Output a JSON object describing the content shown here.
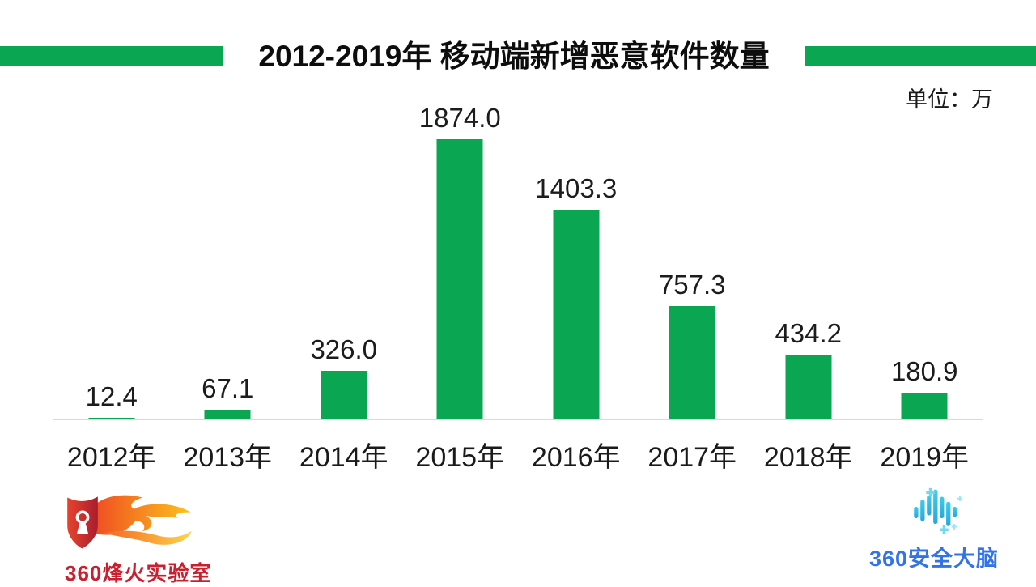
{
  "title": {
    "text": "2012-2019年 移动端新增恶意软件数量"
  },
  "unit_label": "单位：万",
  "chart_data": {
    "type": "bar",
    "title": "2012-2019年 移动端新增恶意软件数量",
    "categories": [
      "2012年",
      "2013年",
      "2014年",
      "2015年",
      "2016年",
      "2017年",
      "2018年",
      "2019年"
    ],
    "values": [
      12.4,
      67.1,
      326.0,
      1874.0,
      1403.3,
      757.3,
      434.2,
      180.9
    ],
    "value_labels": [
      "12.4",
      "67.1",
      "326.0",
      "1874.0",
      "1403.3",
      "757.3",
      "434.2",
      "180.9"
    ],
    "xlabel": "",
    "ylabel": "单位：万",
    "ylim": [
      0,
      1874
    ],
    "bar_color": "#0ba652",
    "axis_line_color": "#d9d9d9",
    "grid": false,
    "legend": false
  },
  "footer": {
    "left_logo_text": "360烽火实验室",
    "left_logo_color": "#c8202f",
    "right_logo_text": "360安全大脑",
    "right_logo_color": "#3273e8"
  },
  "colors": {
    "accent_green": "#0ba652",
    "label_text": "#1a1a1a"
  }
}
